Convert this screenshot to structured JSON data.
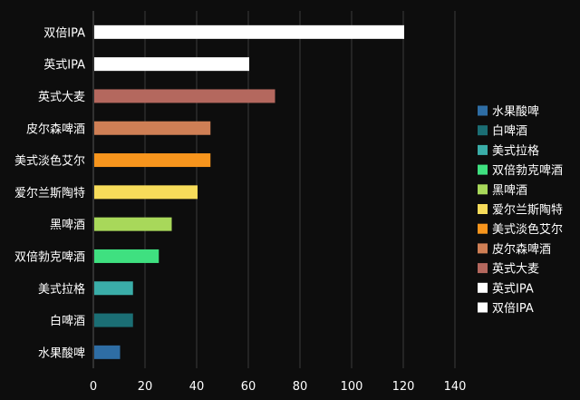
{
  "chart_data": {
    "type": "bar",
    "orientation": "horizontal",
    "categories": [
      "水果酸啤",
      "白啤酒",
      "美式拉格",
      "双倍勃克啤酒",
      "黑啤酒",
      "爱尔兰斯陶特",
      "美式淡色艾尔",
      "皮尔森啤酒",
      "英式大麦",
      "英式IPA",
      "双倍IPA"
    ],
    "values": [
      10,
      15,
      15,
      25,
      30,
      40,
      45,
      45,
      70,
      60,
      120
    ],
    "colors": [
      "#2e6da4",
      "#1b6e74",
      "#3aada8",
      "#3fe080",
      "#a8d85a",
      "#f7dc5a",
      "#f7951d",
      "#cf7f55",
      "#b4685e",
      "#ffffff",
      "#ffffff"
    ],
    "xlim": [
      0,
      140
    ],
    "xticks": [
      0,
      20,
      40,
      60,
      80,
      100,
      120,
      140
    ],
    "grid": true,
    "legend_position": "right",
    "legend": [
      {
        "label": "水果酸啤",
        "color": "#2e6da4"
      },
      {
        "label": "白啤酒",
        "color": "#1b6e74"
      },
      {
        "label": "美式拉格",
        "color": "#3aada8"
      },
      {
        "label": "双倍勃克啤酒",
        "color": "#3fe080"
      },
      {
        "label": "黑啤酒",
        "color": "#a8d85a"
      },
      {
        "label": "爱尔兰斯陶特",
        "color": "#f7dc5a"
      },
      {
        "label": "美式淡色艾尔",
        "color": "#f7951d"
      },
      {
        "label": "皮尔森啤酒",
        "color": "#cf7f55"
      },
      {
        "label": "英式大麦",
        "color": "#b4685e"
      },
      {
        "label": "英式IPA",
        "color": "#ffffff"
      },
      {
        "label": "双倍IPA",
        "color": "#ffffff"
      }
    ]
  }
}
